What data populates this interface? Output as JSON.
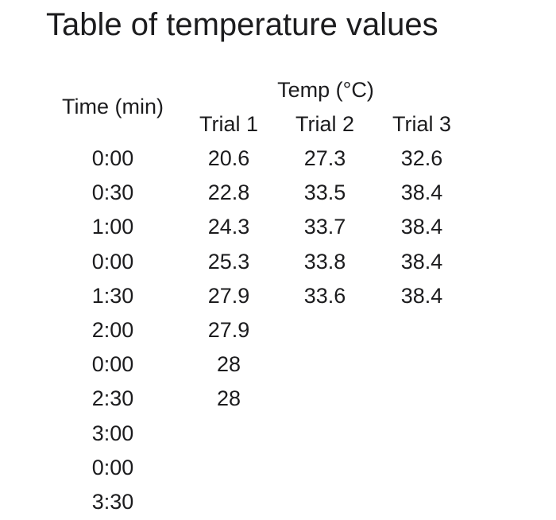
{
  "title": "Table of temperature values",
  "table": {
    "time_header": "Time (min)",
    "temp_header": "Temp (°C)",
    "trial_headers": [
      "Trial 1",
      "Trial 2",
      "Trial 3"
    ],
    "times": [
      "0:00",
      "0:30",
      "1:00",
      "0:00",
      "1:30",
      "2:00",
      "0:00",
      "2:30",
      "3:00",
      "0:00",
      "3:30"
    ],
    "trials": [
      [
        "20.6",
        "22.8",
        "24.3",
        "25.3",
        "27.9",
        "27.9",
        "28",
        "28"
      ],
      [
        "27.3",
        "33.5",
        "33.7",
        "33.8",
        "33.6"
      ],
      [
        "32.6",
        "38.4",
        "38.4",
        "38.4",
        "38.4"
      ]
    ]
  }
}
